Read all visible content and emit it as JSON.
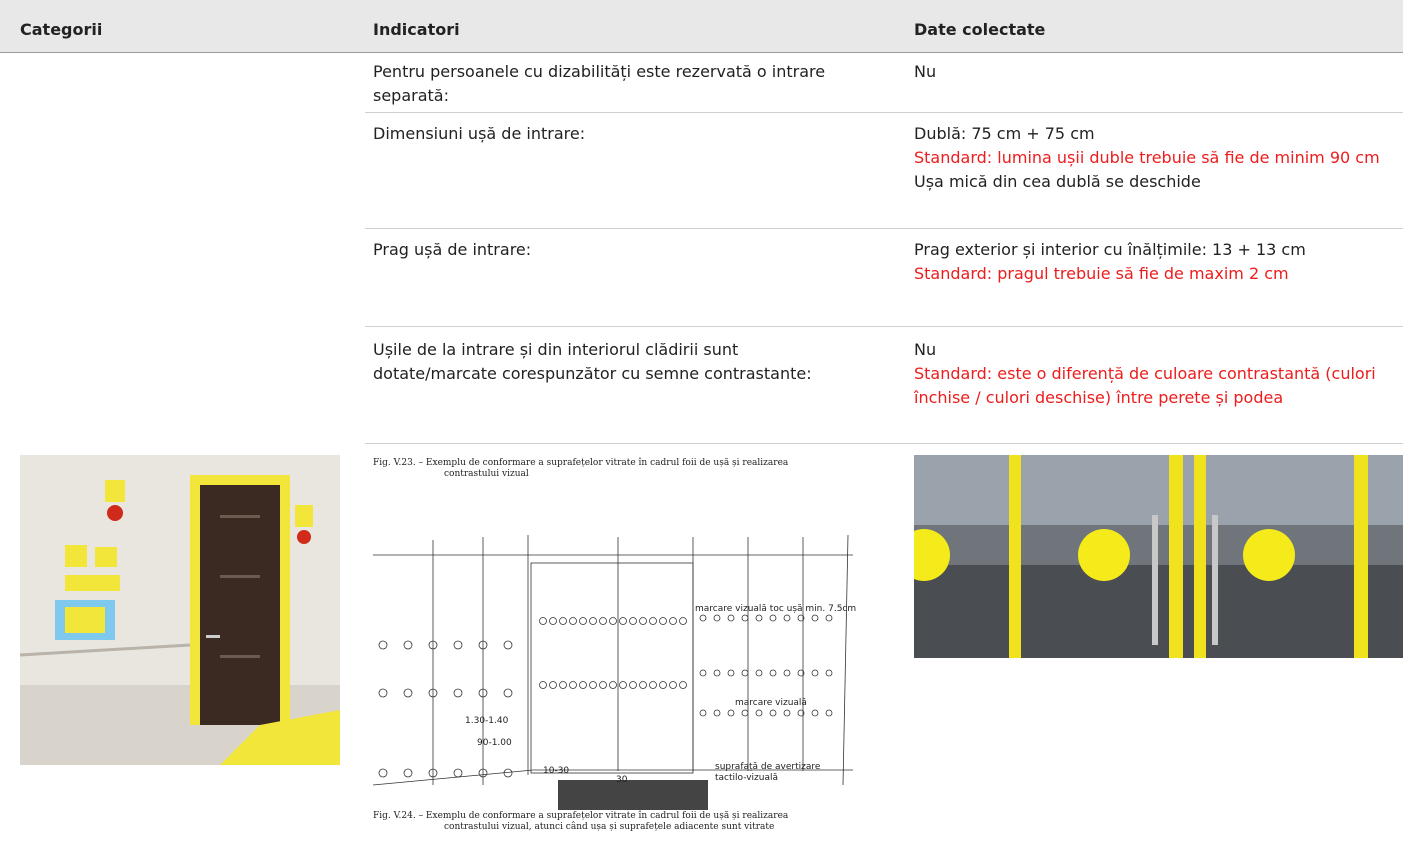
{
  "header": {
    "columns": [
      "Categorii",
      "Indicatori",
      "Date colectate"
    ]
  },
  "rows": [
    {
      "indicator": "Pentru persoanele cu dizabilități este rezervată o intrare separată:",
      "data": [
        {
          "text": "Nu",
          "color": "#222222"
        }
      ]
    },
    {
      "indicator": "Dimensiuni ușă de intrare:",
      "data": [
        {
          "text": "Dublă: 75 cm + 75 cm",
          "color": "#222222"
        },
        {
          "text": "Standard: lumina ușii duble trebuie să fie de minim 90 cm",
          "color": "#ee1c1c"
        },
        {
          "text": "Ușa mică din cea dublă se deschide",
          "color": "#222222"
        }
      ]
    },
    {
      "indicator": "Prag ușă de intrare:",
      "data": [
        {
          "text": "Prag exterior și interior cu înălțimile: 13 + 13 cm",
          "color": "#222222"
        },
        {
          "text": "Standard: pragul trebuie să fie de maxim 2 cm",
          "color": "#ee1c1c"
        }
      ]
    },
    {
      "indicator": "Ușile de la intrare și din interiorul clădirii sunt dotate/marcate corespunzător cu semne contrastante:",
      "data": [
        {
          "text": "Nu",
          "color": "#222222"
        },
        {
          "text": "Standard: este o diferență de culoare contrastantă (culori închise / culori deschise) între perete și podea",
          "color": "#ee1c1c"
        }
      ]
    }
  ],
  "figure": {
    "caption_top": [
      "Fig. V.23. –   Exemplu de conformare a suprafețelor vitrate în cadrul foii de ușă și realizarea",
      "contrastului vizual"
    ],
    "labels": [
      "marcare vizuală toc ușă min. 7.5cm",
      "marcare vizuală",
      "1.30-1.40",
      "90-1.00",
      "10-30",
      "30",
      "suprafață de avertizare",
      "tactilo-vizuală"
    ],
    "caption_bottom": [
      "Fig. V.24. –   Exemplu de conformare a suprafețelor vitrate în cadrul foii de ușă și realizarea",
      "contrastului vizual, atunci când ușa și suprafețele adiacente sunt vitrate"
    ]
  }
}
